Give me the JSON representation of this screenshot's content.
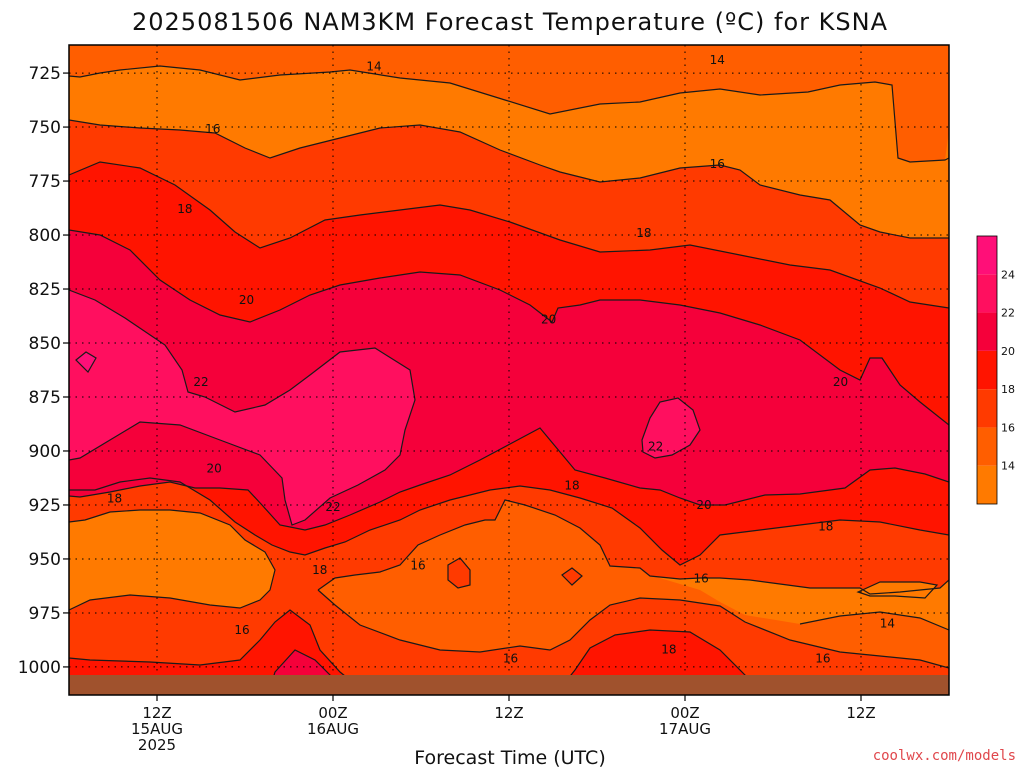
{
  "chart_data": {
    "type": "filled-contour",
    "title": "2025081506 NAM3KM Forecast Temperature (ºC) for KSNA",
    "xlabel": "Forecast Time (UTC)",
    "credit": "coolwx.com/models",
    "y_axis": {
      "reversed": true,
      "range": [
        1013,
        712
      ],
      "ticks": [
        725,
        750,
        775,
        800,
        825,
        850,
        875,
        900,
        925,
        950,
        975,
        1000
      ]
    },
    "x_axis": {
      "range_hours": [
        0,
        60
      ],
      "ticks": [
        {
          "hour": 6,
          "lines": [
            "12Z",
            "15AUG",
            "2025"
          ]
        },
        {
          "hour": 18,
          "lines": [
            "00Z",
            "16AUG"
          ]
        },
        {
          "hour": 30,
          "lines": [
            "12Z"
          ]
        },
        {
          "hour": 42,
          "lines": [
            "00Z",
            "17AUG"
          ]
        },
        {
          "hour": 54,
          "lines": [
            "12Z"
          ]
        }
      ]
    },
    "grid": "dotted",
    "colorbar": {
      "placement": "right",
      "levels": [
        12,
        14,
        16,
        18,
        20,
        22,
        24,
        26
      ],
      "colors": [
        "#ff7a00",
        "#ff5e00",
        "#ff3a00",
        "#ff1400",
        "#f5003a",
        "#ff0f5f",
        "#ff0f78"
      ],
      "tick_labels": [
        "14",
        "16",
        "18",
        "20",
        "22",
        "24"
      ]
    },
    "ground_color": "#a0522d",
    "contour_labels": [
      {
        "value": "14",
        "hour": 20.8,
        "p": 722
      },
      {
        "value": "14",
        "hour": 44.2,
        "p": 719
      },
      {
        "value": "14",
        "hour": 55.8,
        "p": 980
      },
      {
        "value": "16",
        "hour": 9.8,
        "p": 751
      },
      {
        "value": "16",
        "hour": 44.2,
        "p": 767
      },
      {
        "value": "16",
        "hour": 11.8,
        "p": 983
      },
      {
        "value": "16",
        "hour": 23.8,
        "p": 953
      },
      {
        "value": "16",
        "hour": 30.1,
        "p": 996
      },
      {
        "value": "16",
        "hour": 43.1,
        "p": 959
      },
      {
        "value": "16",
        "hour": 51.4,
        "p": 996
      },
      {
        "value": "18",
        "hour": 7.9,
        "p": 788
      },
      {
        "value": "18",
        "hour": 39.2,
        "p": 799
      },
      {
        "value": "18",
        "hour": 3.1,
        "p": 922
      },
      {
        "value": "18",
        "hour": 17.1,
        "p": 955
      },
      {
        "value": "18",
        "hour": 34.3,
        "p": 916
      },
      {
        "value": "18",
        "hour": 51.6,
        "p": 935
      },
      {
        "value": "18",
        "hour": 40.9,
        "p": 992
      },
      {
        "value": "20",
        "hour": 12.1,
        "p": 830
      },
      {
        "value": "20",
        "hour": 32.7,
        "p": 839
      },
      {
        "value": "20",
        "hour": 52.6,
        "p": 868
      },
      {
        "value": "20",
        "hour": 9.9,
        "p": 908
      },
      {
        "value": "20",
        "hour": 43.3,
        "p": 925
      },
      {
        "value": "22",
        "hour": 9.0,
        "p": 868
      },
      {
        "value": "22",
        "hour": 18.0,
        "p": 926
      },
      {
        "value": "22",
        "hour": 40.0,
        "p": 898
      }
    ]
  }
}
